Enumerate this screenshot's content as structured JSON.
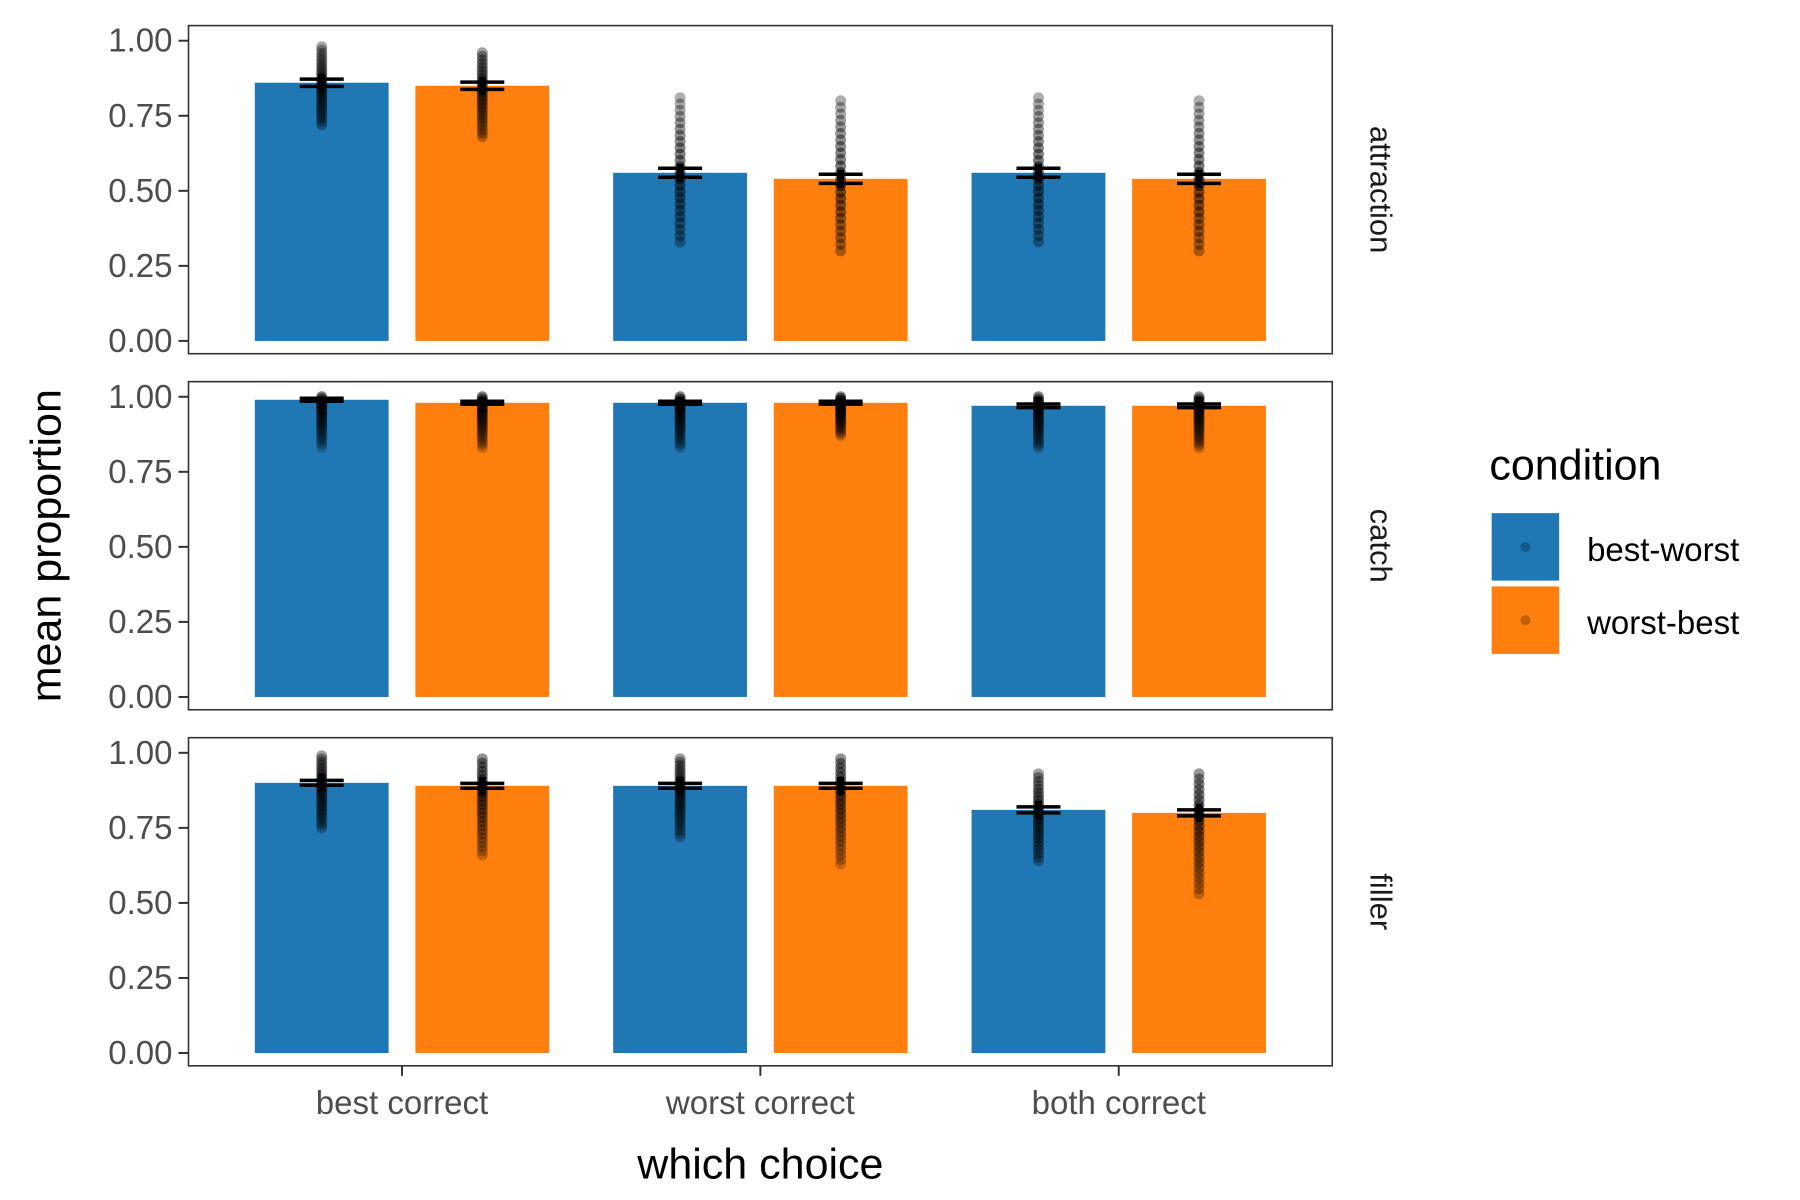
{
  "chart_data": {
    "type": "bar",
    "xlabel": "which choice",
    "ylabel": "mean proportion",
    "ylim": [
      0,
      1
    ],
    "yticks": [
      "0.00",
      "0.25",
      "0.50",
      "0.75",
      "1.00"
    ],
    "categories": [
      "best correct",
      "worst correct",
      "both correct"
    ],
    "colors": {
      "best-worst": "#1f77b4",
      "worst-best": "#ff7f0e"
    },
    "legend": {
      "title": "condition",
      "position": "right",
      "entries": [
        "best-worst",
        "worst-best"
      ]
    },
    "grid": false,
    "facets": [
      {
        "label": "attraction",
        "series": [
          {
            "name": "best-worst",
            "values": [
              0.86,
              0.56,
              0.56
            ],
            "se": [
              0.012,
              0.015,
              0.015
            ],
            "points_range": [
              [
                0.72,
                0.98
              ],
              [
                0.33,
                0.81
              ],
              [
                0.33,
                0.81
              ]
            ]
          },
          {
            "name": "worst-best",
            "values": [
              0.85,
              0.54,
              0.54
            ],
            "se": [
              0.012,
              0.015,
              0.015
            ],
            "points_range": [
              [
                0.68,
                0.96
              ],
              [
                0.3,
                0.8
              ],
              [
                0.3,
                0.8
              ]
            ]
          }
        ]
      },
      {
        "label": "catch",
        "series": [
          {
            "name": "best-worst",
            "values": [
              0.99,
              0.98,
              0.97
            ],
            "se": [
              0.005,
              0.005,
              0.006
            ],
            "points_range": [
              [
                0.83,
                1.0
              ],
              [
                0.83,
                1.0
              ],
              [
                0.83,
                1.0
              ]
            ]
          },
          {
            "name": "worst-best",
            "values": [
              0.98,
              0.98,
              0.97
            ],
            "se": [
              0.005,
              0.005,
              0.006
            ],
            "points_range": [
              [
                0.83,
                1.0
              ],
              [
                0.87,
                1.0
              ],
              [
                0.83,
                1.0
              ]
            ]
          }
        ]
      },
      {
        "label": "filler",
        "series": [
          {
            "name": "best-worst",
            "values": [
              0.9,
              0.89,
              0.81
            ],
            "se": [
              0.008,
              0.008,
              0.01
            ],
            "points_range": [
              [
                0.75,
                0.99
              ],
              [
                0.72,
                0.98
              ],
              [
                0.64,
                0.93
              ]
            ]
          },
          {
            "name": "worst-best",
            "values": [
              0.89,
              0.89,
              0.8
            ],
            "se": [
              0.008,
              0.008,
              0.01
            ],
            "points_range": [
              [
                0.66,
                0.98
              ],
              [
                0.63,
                0.98
              ],
              [
                0.53,
                0.93
              ]
            ]
          }
        ]
      }
    ]
  }
}
